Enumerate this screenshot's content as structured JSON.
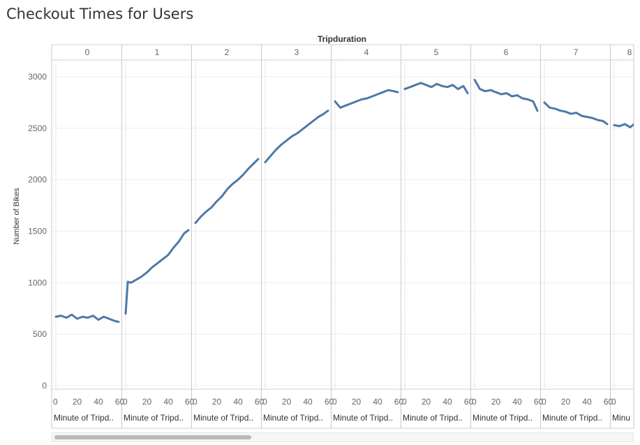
{
  "page": {
    "title": "Checkout Times for Users"
  },
  "chart_data": {
    "type": "line",
    "title": "Checkout Times for Users",
    "column_header": "Tripduration",
    "ylabel": "Number of Bikes",
    "xlabel": "Minute of Tripd..",
    "xlabel_last": "Minu",
    "ylim": [
      0,
      3000
    ],
    "yticks": [
      0,
      500,
      1000,
      1500,
      2000,
      2500,
      3000
    ],
    "xticks": [
      0,
      20,
      40,
      60
    ],
    "x_range": [
      0,
      59
    ],
    "line_color": "#4e79a7",
    "grid": true,
    "panels": [
      {
        "label": "0",
        "x": [
          0,
          5,
          10,
          15,
          20,
          25,
          30,
          35,
          40,
          45,
          50,
          55,
          59
        ],
        "y": [
          670,
          680,
          660,
          690,
          650,
          670,
          660,
          680,
          640,
          670,
          650,
          630,
          620
        ]
      },
      {
        "label": "1",
        "x": [
          0,
          2,
          5,
          10,
          15,
          20,
          25,
          30,
          35,
          40,
          45,
          50,
          55,
          59
        ],
        "y": [
          700,
          1010,
          1000,
          1030,
          1060,
          1100,
          1150,
          1190,
          1230,
          1270,
          1340,
          1400,
          1480,
          1510
        ]
      },
      {
        "label": "2",
        "x": [
          0,
          5,
          10,
          15,
          20,
          25,
          30,
          35,
          40,
          45,
          50,
          55,
          59
        ],
        "y": [
          1580,
          1640,
          1690,
          1730,
          1790,
          1840,
          1910,
          1960,
          2000,
          2050,
          2110,
          2160,
          2200
        ]
      },
      {
        "label": "3",
        "x": [
          0,
          5,
          10,
          15,
          20,
          25,
          30,
          35,
          40,
          45,
          50,
          55,
          59
        ],
        "y": [
          2170,
          2230,
          2290,
          2340,
          2380,
          2420,
          2450,
          2490,
          2530,
          2570,
          2610,
          2640,
          2670
        ]
      },
      {
        "label": "4",
        "x": [
          0,
          5,
          10,
          15,
          20,
          25,
          30,
          35,
          40,
          45,
          50,
          55,
          59
        ],
        "y": [
          2760,
          2700,
          2720,
          2740,
          2760,
          2780,
          2790,
          2810,
          2830,
          2850,
          2870,
          2860,
          2850
        ]
      },
      {
        "label": "5",
        "x": [
          0,
          5,
          10,
          15,
          20,
          25,
          30,
          35,
          40,
          45,
          50,
          55,
          59
        ],
        "y": [
          2880,
          2900,
          2920,
          2940,
          2920,
          2900,
          2930,
          2910,
          2900,
          2920,
          2880,
          2910,
          2840
        ]
      },
      {
        "label": "6",
        "x": [
          0,
          5,
          10,
          15,
          20,
          25,
          30,
          35,
          40,
          45,
          50,
          55,
          59
        ],
        "y": [
          2970,
          2880,
          2860,
          2870,
          2850,
          2830,
          2840,
          2810,
          2820,
          2790,
          2780,
          2760,
          2670
        ]
      },
      {
        "label": "7",
        "x": [
          0,
          5,
          10,
          15,
          20,
          25,
          30,
          35,
          40,
          45,
          50,
          55,
          59
        ],
        "y": [
          2750,
          2700,
          2690,
          2670,
          2660,
          2640,
          2650,
          2620,
          2610,
          2600,
          2580,
          2570,
          2540
        ]
      },
      {
        "label": "8",
        "x": [
          0,
          5,
          10,
          15,
          20,
          25,
          30
        ],
        "y": [
          2530,
          2520,
          2540,
          2510,
          2550,
          2450,
          2500
        ]
      }
    ]
  }
}
